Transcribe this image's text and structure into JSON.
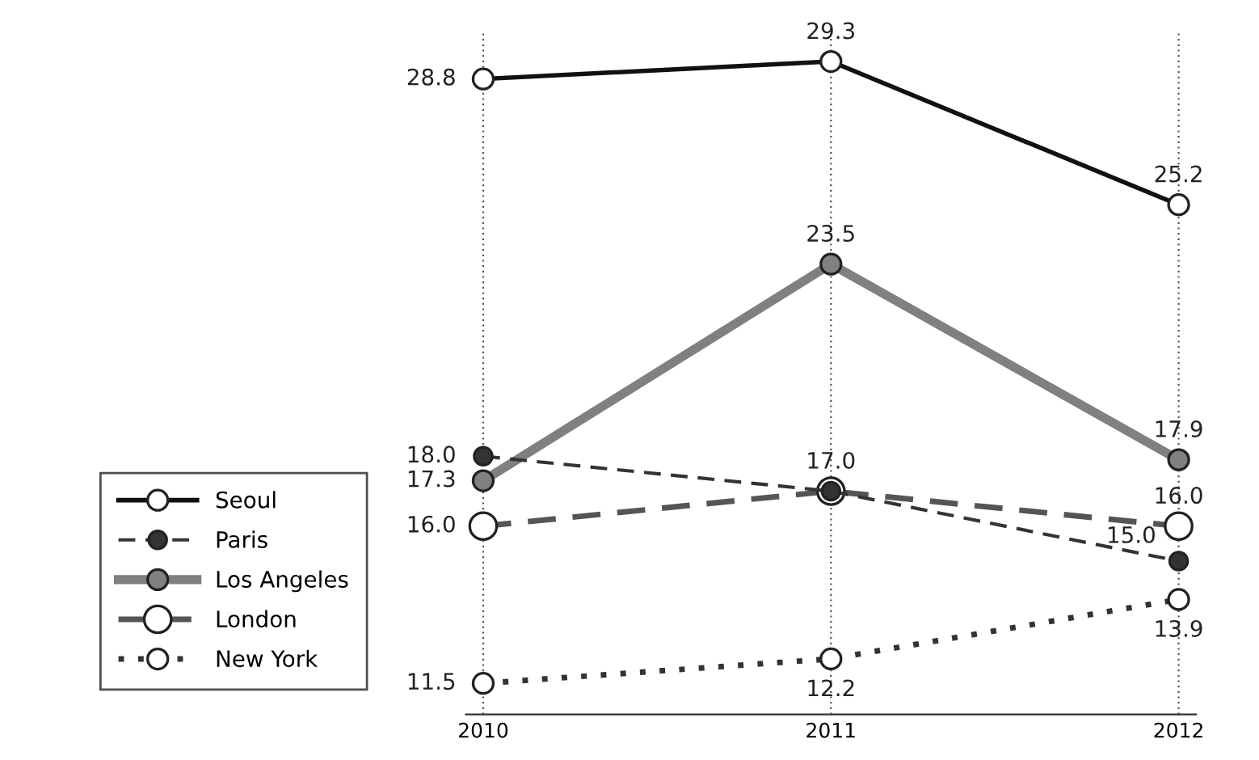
{
  "chart_data": {
    "type": "line",
    "categories": [
      "2010",
      "2011",
      "2012"
    ],
    "series": [
      {
        "name": "Seoul",
        "color": "#111111",
        "values": [
          28.8,
          29.3,
          25.2
        ],
        "line_style": "solid",
        "value_labels": [
          "28.8",
          "29.3",
          "25.2"
        ]
      },
      {
        "name": "Paris",
        "color": "#333333",
        "values": [
          18.0,
          17.0,
          15.0
        ],
        "line_style": "dashed",
        "value_labels": [
          "18.0",
          "17.0",
          "15.0"
        ]
      },
      {
        "name": "Los Angeles",
        "color": "#808080",
        "values": [
          17.3,
          23.5,
          17.9
        ],
        "line_style": "solid",
        "value_labels": [
          "17.3",
          "23.5",
          "17.9"
        ]
      },
      {
        "name": "London",
        "color": "#555555",
        "values": [
          16.0,
          17.0,
          16.0
        ],
        "line_style": "dashed",
        "value_labels": [
          "16.0",
          null,
          "16.0"
        ]
      },
      {
        "name": "New York",
        "color": "#333333",
        "values": [
          11.5,
          12.2,
          13.9
        ],
        "line_style": "dotted",
        "value_labels": [
          "11.5",
          "12.2",
          "13.9"
        ]
      }
    ],
    "marker": "circle",
    "grid": "x",
    "legend": "bottom left"
  }
}
